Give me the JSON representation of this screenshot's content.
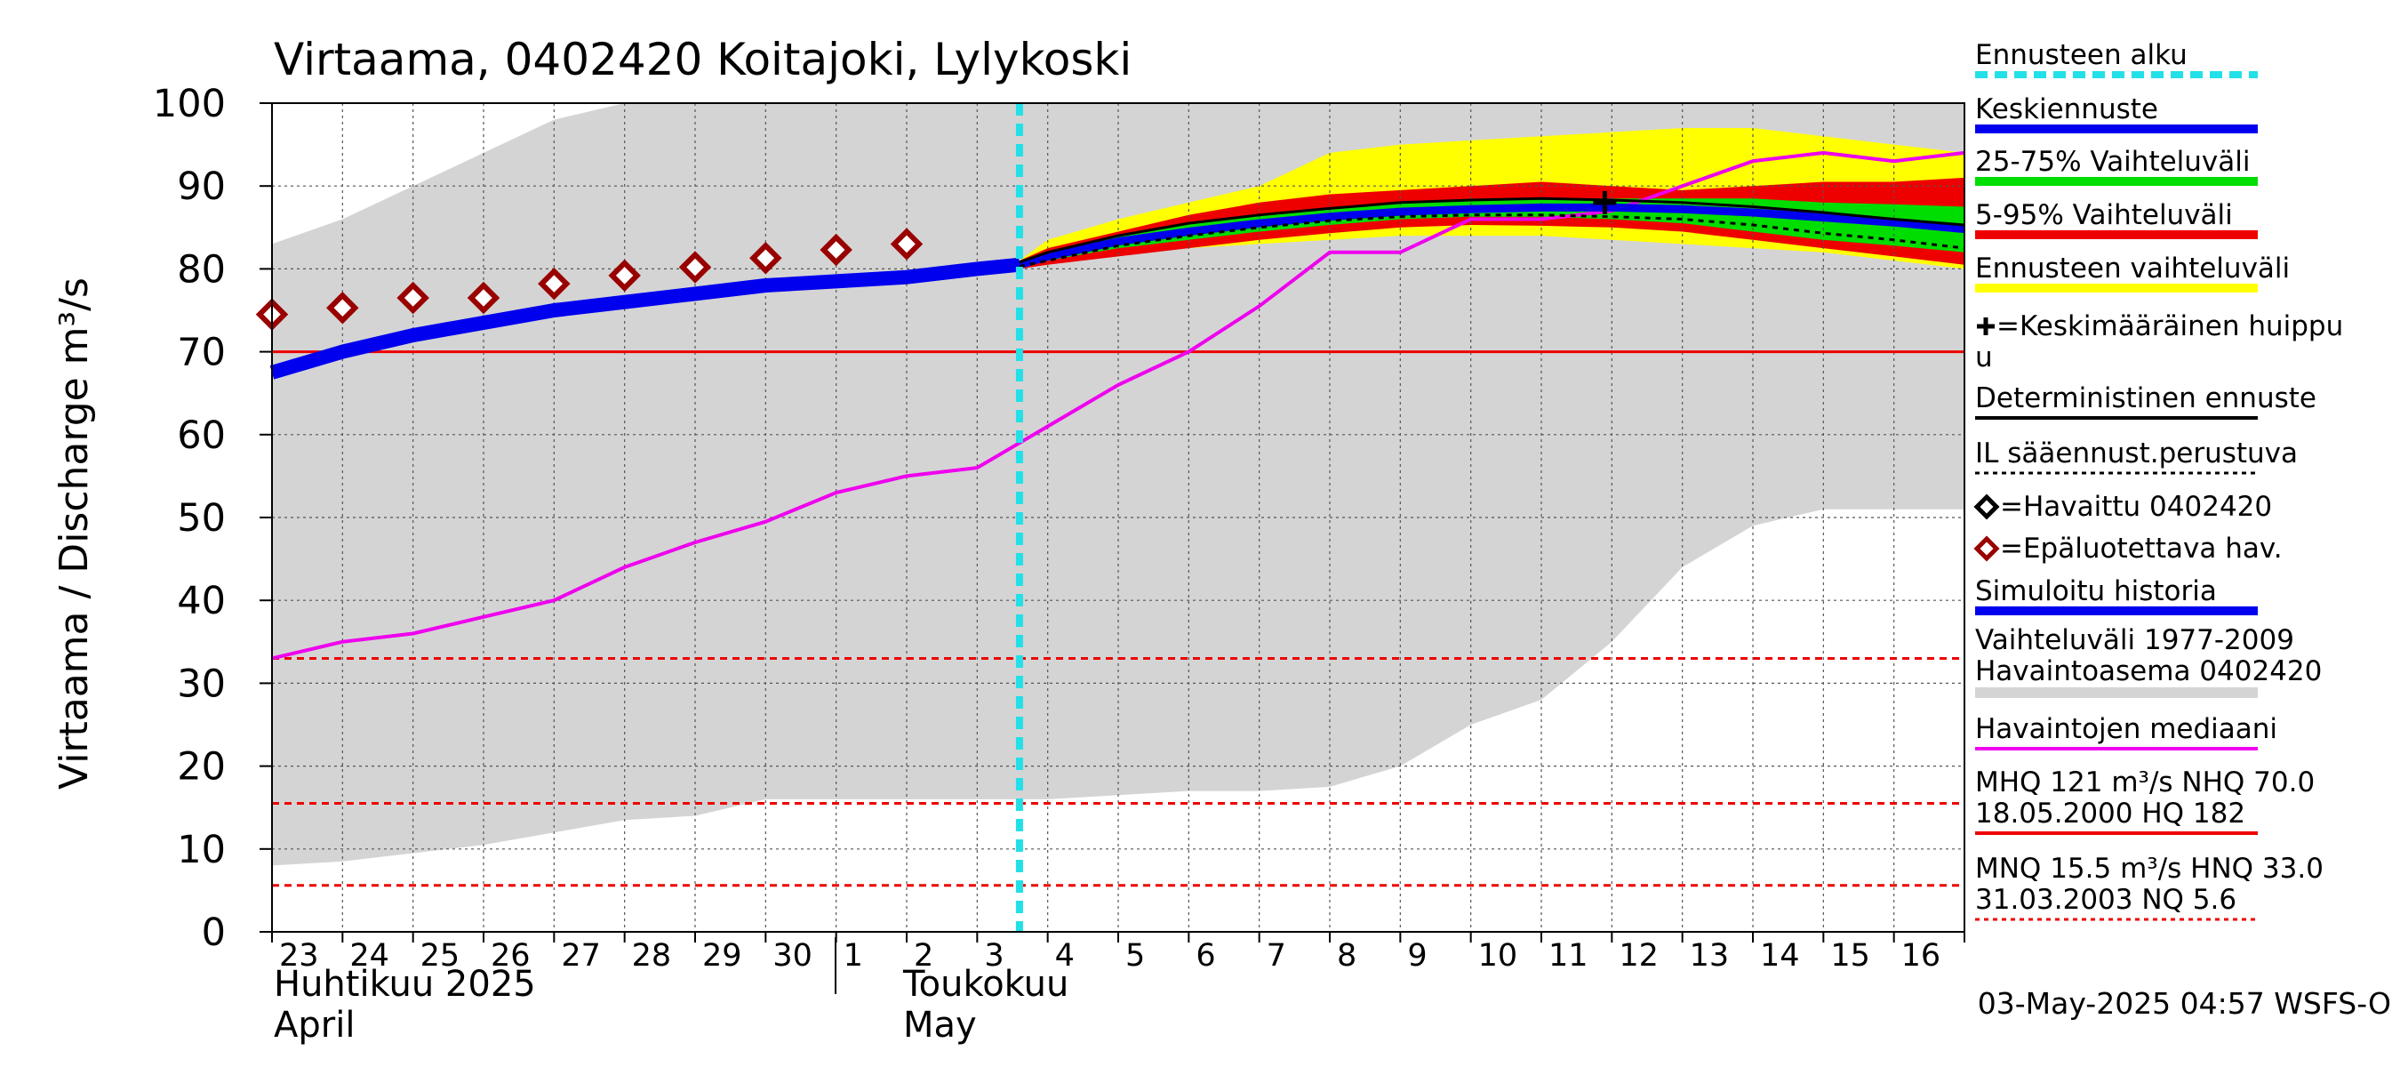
{
  "chart_data": {
    "type": "area",
    "title": "Virtaama, 0402420 Koitajoki, Lylykoski",
    "ylabel": "Virtaama / Discharge   m³/s",
    "ylim": [
      0,
      100
    ],
    "yticks": [
      "0",
      "10",
      "20",
      "30",
      "40",
      "50",
      "60",
      "70",
      "80",
      "90",
      "100"
    ],
    "x_day_labels": [
      "23",
      "24",
      "25",
      "26",
      "27",
      "28",
      "29",
      "30",
      "1",
      "2",
      "3",
      "4",
      "5",
      "6",
      "7",
      "8",
      "9",
      "10",
      "11",
      "12",
      "13",
      "14",
      "15",
      "16"
    ],
    "month_labels": {
      "april_fi": "Huhtikuu  2025",
      "april_en": "April",
      "may_fi": "Toukokuu",
      "may_en": "May"
    },
    "forecast_start_day": 10.6,
    "history_range_1977_2009": {
      "upper": [
        [
          0,
          83
        ],
        [
          1,
          86
        ],
        [
          2,
          90
        ],
        [
          3,
          94
        ],
        [
          4,
          98
        ],
        [
          5,
          100
        ],
        [
          23.5,
          100
        ],
        [
          24,
          100
        ]
      ],
      "lower": [
        [
          0,
          8
        ],
        [
          1,
          8.5
        ],
        [
          2,
          9.5
        ],
        [
          3,
          10.5
        ],
        [
          4,
          12
        ],
        [
          5,
          13.5
        ],
        [
          6,
          14
        ],
        [
          7,
          16
        ],
        [
          8,
          16
        ],
        [
          9,
          16
        ],
        [
          10,
          16
        ],
        [
          11,
          16
        ],
        [
          12,
          16.5
        ],
        [
          13,
          17
        ],
        [
          14,
          17
        ],
        [
          15,
          17.5
        ],
        [
          16,
          20
        ],
        [
          17,
          25
        ],
        [
          18,
          28
        ],
        [
          19,
          35
        ],
        [
          20,
          44
        ],
        [
          21,
          49
        ],
        [
          22,
          51
        ],
        [
          23,
          51
        ],
        [
          24,
          51
        ]
      ]
    },
    "forecast_range": {
      "upper": [
        [
          10.6,
          81
        ],
        [
          11,
          83.5
        ],
        [
          12,
          86
        ],
        [
          13,
          88
        ],
        [
          14,
          90
        ],
        [
          15,
          94
        ],
        [
          16,
          95
        ],
        [
          17,
          95.5
        ],
        [
          18,
          96
        ],
        [
          19,
          96.5
        ],
        [
          20,
          97
        ],
        [
          21,
          97
        ],
        [
          22,
          96
        ],
        [
          23,
          95
        ],
        [
          24,
          94
        ]
      ],
      "lower": [
        [
          10.6,
          80
        ],
        [
          11,
          81
        ],
        [
          12,
          82
        ],
        [
          13,
          82.5
        ],
        [
          14,
          83
        ],
        [
          15,
          83.5
        ],
        [
          16,
          84
        ],
        [
          17,
          84
        ],
        [
          18,
          84
        ],
        [
          19,
          83.5
        ],
        [
          20,
          83
        ],
        [
          21,
          82.5
        ],
        [
          22,
          82
        ],
        [
          23,
          81
        ],
        [
          24,
          80
        ]
      ]
    },
    "range_5_95": {
      "upper": [
        [
          10.6,
          81
        ],
        [
          11,
          82.5
        ],
        [
          12,
          84.5
        ],
        [
          13,
          86.5
        ],
        [
          14,
          88
        ],
        [
          15,
          89
        ],
        [
          16,
          89.5
        ],
        [
          17,
          90
        ],
        [
          18,
          90.5
        ],
        [
          19,
          90
        ],
        [
          20,
          89.5
        ],
        [
          21,
          90
        ],
        [
          22,
          90.5
        ],
        [
          23,
          90.5
        ],
        [
          24,
          91
        ]
      ],
      "lower": [
        [
          10.6,
          80
        ],
        [
          11,
          80.5
        ],
        [
          12,
          81.5
        ],
        [
          13,
          82.5
        ],
        [
          14,
          83.5
        ],
        [
          15,
          84.3
        ],
        [
          16,
          85
        ],
        [
          17,
          85.3
        ],
        [
          18,
          85.2
        ],
        [
          19,
          85
        ],
        [
          20,
          84.5
        ],
        [
          21,
          83.5
        ],
        [
          22,
          82.5
        ],
        [
          23,
          81.5
        ],
        [
          24,
          80.5
        ]
      ]
    },
    "range_25_75": {
      "upper": [
        [
          10.6,
          80.8
        ],
        [
          11,
          82
        ],
        [
          12,
          84
        ],
        [
          13,
          85.5
        ],
        [
          14,
          86.5
        ],
        [
          15,
          87.3
        ],
        [
          16,
          88
        ],
        [
          17,
          88.3
        ],
        [
          18,
          88.5
        ],
        [
          19,
          88.5
        ],
        [
          20,
          88.5
        ],
        [
          21,
          88.5
        ],
        [
          22,
          88
        ],
        [
          23,
          87.8
        ],
        [
          24,
          87.5
        ]
      ],
      "lower": [
        [
          10.6,
          80.2
        ],
        [
          11,
          81
        ],
        [
          12,
          82.5
        ],
        [
          13,
          83.5
        ],
        [
          14,
          84.5
        ],
        [
          15,
          85.3
        ],
        [
          16,
          86
        ],
        [
          17,
          86.3
        ],
        [
          18,
          86.3
        ],
        [
          19,
          86
        ],
        [
          20,
          85.5
        ],
        [
          21,
          84.5
        ],
        [
          22,
          83.5
        ],
        [
          23,
          82.8
        ],
        [
          24,
          82
        ]
      ]
    },
    "simulated_history": [
      [
        0,
        67.5
      ],
      [
        1,
        70
      ],
      [
        2,
        72
      ],
      [
        3,
        73.5
      ],
      [
        4,
        75
      ],
      [
        5,
        76
      ],
      [
        6,
        77
      ],
      [
        7,
        78
      ],
      [
        8,
        78.5
      ],
      [
        9,
        79
      ],
      [
        10,
        80
      ],
      [
        10.6,
        80.5
      ]
    ],
    "mean_forecast": [
      [
        10.6,
        80.5
      ],
      [
        11,
        81.5
      ],
      [
        12,
        83.3
      ],
      [
        13,
        84.5
      ],
      [
        14,
        85.5
      ],
      [
        15,
        86.3
      ],
      [
        16,
        86.9
      ],
      [
        17,
        87.2
      ],
      [
        18,
        87.4
      ],
      [
        19,
        87.4
      ],
      [
        20,
        87.2
      ],
      [
        21,
        86.8
      ],
      [
        22,
        86.2
      ],
      [
        23,
        85.6
      ],
      [
        24,
        84.8
      ]
    ],
    "deterministic_forecast": [
      [
        10.6,
        80.8
      ],
      [
        11,
        82
      ],
      [
        12,
        84
      ],
      [
        13,
        85.5
      ],
      [
        14,
        86.5
      ],
      [
        15,
        87.3
      ],
      [
        16,
        88
      ],
      [
        17,
        88.3
      ],
      [
        18,
        88.5
      ],
      [
        19,
        88.3
      ],
      [
        20,
        88
      ],
      [
        21,
        87.5
      ],
      [
        22,
        86.8
      ],
      [
        23,
        86
      ],
      [
        24,
        85.3
      ]
    ],
    "il_weather_forecast": [
      [
        10.6,
        80.3
      ],
      [
        11,
        81
      ],
      [
        12,
        82.8
      ],
      [
        13,
        84
      ],
      [
        14,
        85
      ],
      [
        15,
        85.8
      ],
      [
        16,
        86.3
      ],
      [
        17,
        86.5
      ],
      [
        18,
        86.5
      ],
      [
        19,
        86.3
      ],
      [
        20,
        86
      ],
      [
        21,
        85.3
      ],
      [
        22,
        84.3
      ],
      [
        23,
        83.5
      ],
      [
        24,
        82.5
      ]
    ],
    "observed_unreliable": [
      [
        0,
        74.5
      ],
      [
        1,
        75.3
      ],
      [
        2,
        76.5
      ],
      [
        3,
        76.5
      ],
      [
        4,
        78.2
      ],
      [
        5,
        79.2
      ],
      [
        6,
        80.2
      ],
      [
        7,
        81.3
      ],
      [
        8,
        82.3
      ],
      [
        9,
        83
      ]
    ],
    "mean_peak": {
      "day": 18.9,
      "value": 88
    },
    "median_observed": [
      [
        0,
        33
      ],
      [
        1,
        35
      ],
      [
        2,
        36
      ],
      [
        3,
        38
      ],
      [
        4,
        40
      ],
      [
        5,
        44
      ],
      [
        6,
        47
      ],
      [
        7,
        49.5
      ],
      [
        8,
        53
      ],
      [
        9,
        55
      ],
      [
        10,
        56
      ],
      [
        11,
        61
      ],
      [
        12,
        66
      ],
      [
        13,
        70
      ],
      [
        14,
        75.5
      ],
      [
        15,
        82
      ],
      [
        16,
        82
      ],
      [
        17,
        86
      ],
      [
        18,
        86
      ],
      [
        19,
        87
      ],
      [
        20,
        90
      ],
      [
        21,
        93
      ],
      [
        22,
        94
      ],
      [
        23,
        93
      ],
      [
        24,
        94
      ]
    ],
    "reference_lines": {
      "MHQ_NHQ": 70,
      "HNQ": 33,
      "MNQ": 15.5,
      "NQ": 5.6
    },
    "legend": [
      {
        "label": "Ennusteen alku",
        "color": "#22e0e8",
        "style": "dashed"
      },
      {
        "label": "Keskiennuste",
        "color": "#0000ee",
        "style": "line"
      },
      {
        "label": "25-75% Vaihteluväli",
        "color": "#00dd00",
        "style": "line"
      },
      {
        "label": "5-95% Vaihteluväli",
        "color": "#ee0000",
        "style": "line"
      },
      {
        "label": "Ennusteen vaihteluväli",
        "color": "#ffff00",
        "style": "line"
      },
      {
        "label": "=Keskimääräinen huippu",
        "label_line2": "u",
        "color": "#000000",
        "style": "cross"
      },
      {
        "label": "Deterministinen ennuste",
        "color": "#000000",
        "style": "line"
      },
      {
        "label": "IL sääennust.perustuva",
        "color": "#000000",
        "style": "dotted"
      },
      {
        "label": "=Havaittu 0402420",
        "color": "#000000",
        "style": "diamond"
      },
      {
        "label": "=Epäluotettava hav.",
        "color": "#990000",
        "style": "diamond"
      },
      {
        "label": "Simuloitu historia",
        "color": "#0000ee",
        "style": "line"
      },
      {
        "label": "Vaihteluväli 1977-2009",
        "label_line2": " Havaintoasema 0402420",
        "color": "#d4d4d4",
        "style": "band"
      },
      {
        "label": "Havaintojen mediaani",
        "color": "#ee00ee",
        "style": "line"
      },
      {
        "label": "MHQ  121 m³/s NHQ 70.0",
        "label_line2": "18.05.2000 HQ  182",
        "color": "#ee0000",
        "style": "line"
      },
      {
        "label": "MNQ 15.5 m³/s HNQ 33.0",
        "label_line2": "31.03.2003 NQ  5.6",
        "color": "#ee0000",
        "style": "dotted"
      }
    ],
    "legend_placement": "right",
    "grid": true
  },
  "footer": {
    "timestamp": "03-May-2025 04:57 WSFS-O"
  },
  "colors": {
    "history_band": "#d4d4d4",
    "forecast_band": "#ffff00",
    "band_5_95": "#ee0000",
    "band_25_75": "#00dd00",
    "mean": "#0000ee",
    "median": "#ee00ee",
    "reference": "#ee0000",
    "forecast_start": "#22e0e8",
    "unreliable": "#990000"
  }
}
